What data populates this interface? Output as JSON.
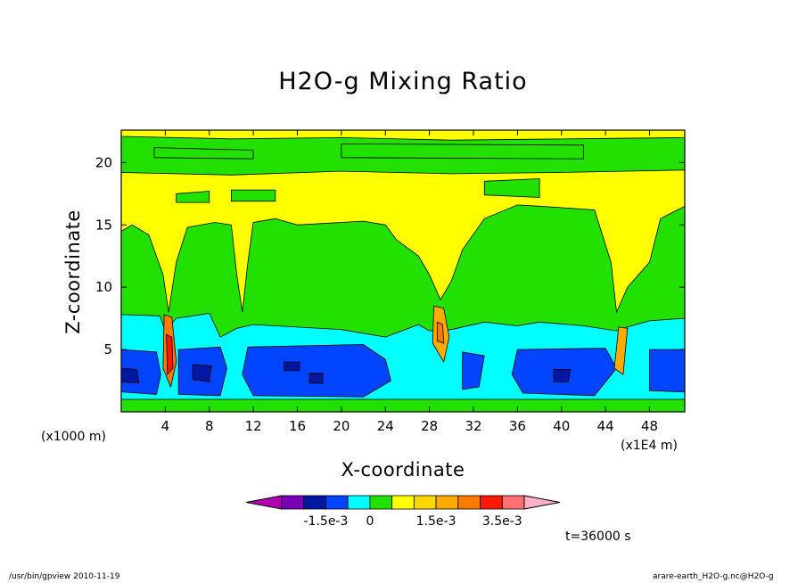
{
  "chart_data": {
    "type": "heatmap",
    "title": "H2O-g Mixing Ratio",
    "xlabel": "X-coordinate",
    "xunit": "(x1E4 m)",
    "ylabel": "Z-coordinate",
    "yunit": "(x1000 m)",
    "x_ticks": [
      "4",
      "8",
      "12",
      "16",
      "20",
      "24",
      "28",
      "32",
      "36",
      "40",
      "44",
      "48"
    ],
    "y_ticks": [
      "5",
      "10",
      "15",
      "20"
    ],
    "xlim": [
      0,
      51.2
    ],
    "ylim": [
      0,
      22.6
    ],
    "colorbar": {
      "tick_labels": [
        "-1.5e-3",
        "0",
        "1.5e-3",
        "3.5e-3"
      ],
      "colors": [
        "#b000b0",
        "#7a00b8",
        "#0018a0",
        "#0044ff",
        "#00ffff",
        "#22e000",
        "#ffff00",
        "#ffd700",
        "#ffaa00",
        "#ff7a00",
        "#ff1800",
        "#ff7070",
        "#ffb0c8"
      ]
    },
    "levels_in_colorbar_units": [
      -4,
      -3,
      -2,
      -1,
      0,
      1,
      2,
      3,
      4,
      5,
      6,
      7,
      8
    ],
    "time_label": "t=36000 s"
  },
  "footer": {
    "left": "/usr/bin/gpview   2010-11-19",
    "right": "arare-earth_H2O-g.nc@H2O-g"
  }
}
